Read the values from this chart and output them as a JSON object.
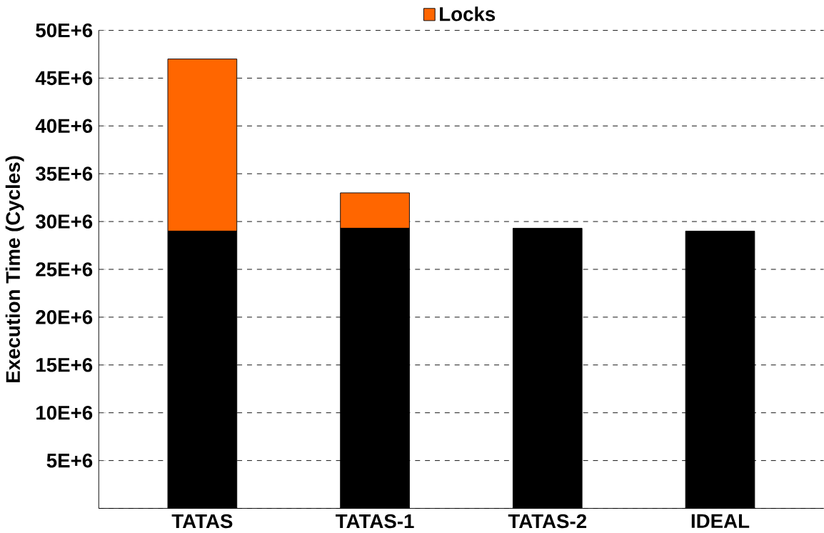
{
  "chart_data": {
    "type": "bar",
    "stacked": true,
    "ylabel": "Execution Time (Cycles)",
    "categories": [
      "TATAS",
      "TATAS-1",
      "TATAS-2",
      "IDEAL"
    ],
    "series": [
      {
        "color": "#000000",
        "values": [
          29000000,
          29300000,
          29300000,
          29000000
        ]
      },
      {
        "name": "Locks",
        "color": "#ff6600",
        "values": [
          18000000,
          3700000,
          0,
          null
        ]
      }
    ],
    "ylim": [
      0,
      50000000
    ],
    "yticks": [
      {
        "value": 0,
        "label": null
      },
      {
        "value": 5000000,
        "label": "5E+6"
      },
      {
        "value": 10000000,
        "label": "10E+6"
      },
      {
        "value": 15000000,
        "label": "15E+6"
      },
      {
        "value": 20000000,
        "label": "20E+6"
      },
      {
        "value": 25000000,
        "label": "25E+6"
      },
      {
        "value": 30000000,
        "label": "30E+6"
      },
      {
        "value": 35000000,
        "label": "35E+6"
      },
      {
        "value": 40000000,
        "label": "40E+6"
      },
      {
        "value": 45000000,
        "label": "45E+6"
      },
      {
        "value": 50000000,
        "label": "50E+6"
      }
    ],
    "grid": "y",
    "legend": "top"
  }
}
